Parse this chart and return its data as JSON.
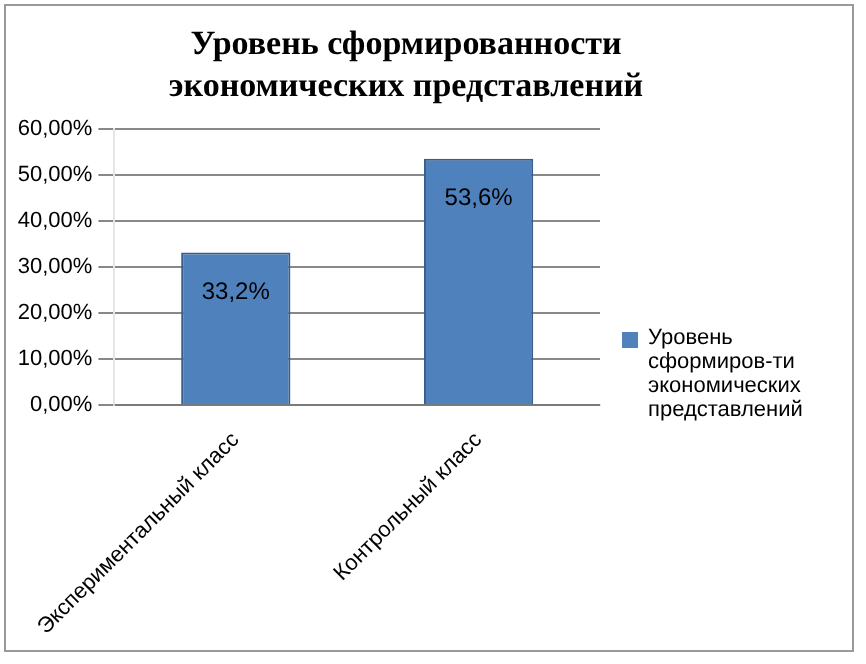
{
  "chart_data": {
    "type": "bar",
    "title": "Уровень сформированности экономических представлений",
    "categories": [
      "Экспериментальный класс",
      "Контрольный класс"
    ],
    "series": [
      {
        "name": "Уровень сформиров-ти экономических представлений",
        "color": "#4f81bd",
        "values": [
          33.2,
          53.6
        ],
        "value_labels": [
          "33,2%",
          "53,6%"
        ]
      }
    ],
    "ylim": [
      0,
      60
    ],
    "yticks": [
      {
        "value": 0,
        "label": "0,00%"
      },
      {
        "value": 10,
        "label": "10,00%"
      },
      {
        "value": 20,
        "label": "20,00%"
      },
      {
        "value": 30,
        "label": "30,00%"
      },
      {
        "value": 40,
        "label": "40,00%"
      },
      {
        "value": 50,
        "label": "50,00%"
      },
      {
        "value": 60,
        "label": "60,00%"
      }
    ],
    "grid": "y",
    "legend": "right"
  }
}
